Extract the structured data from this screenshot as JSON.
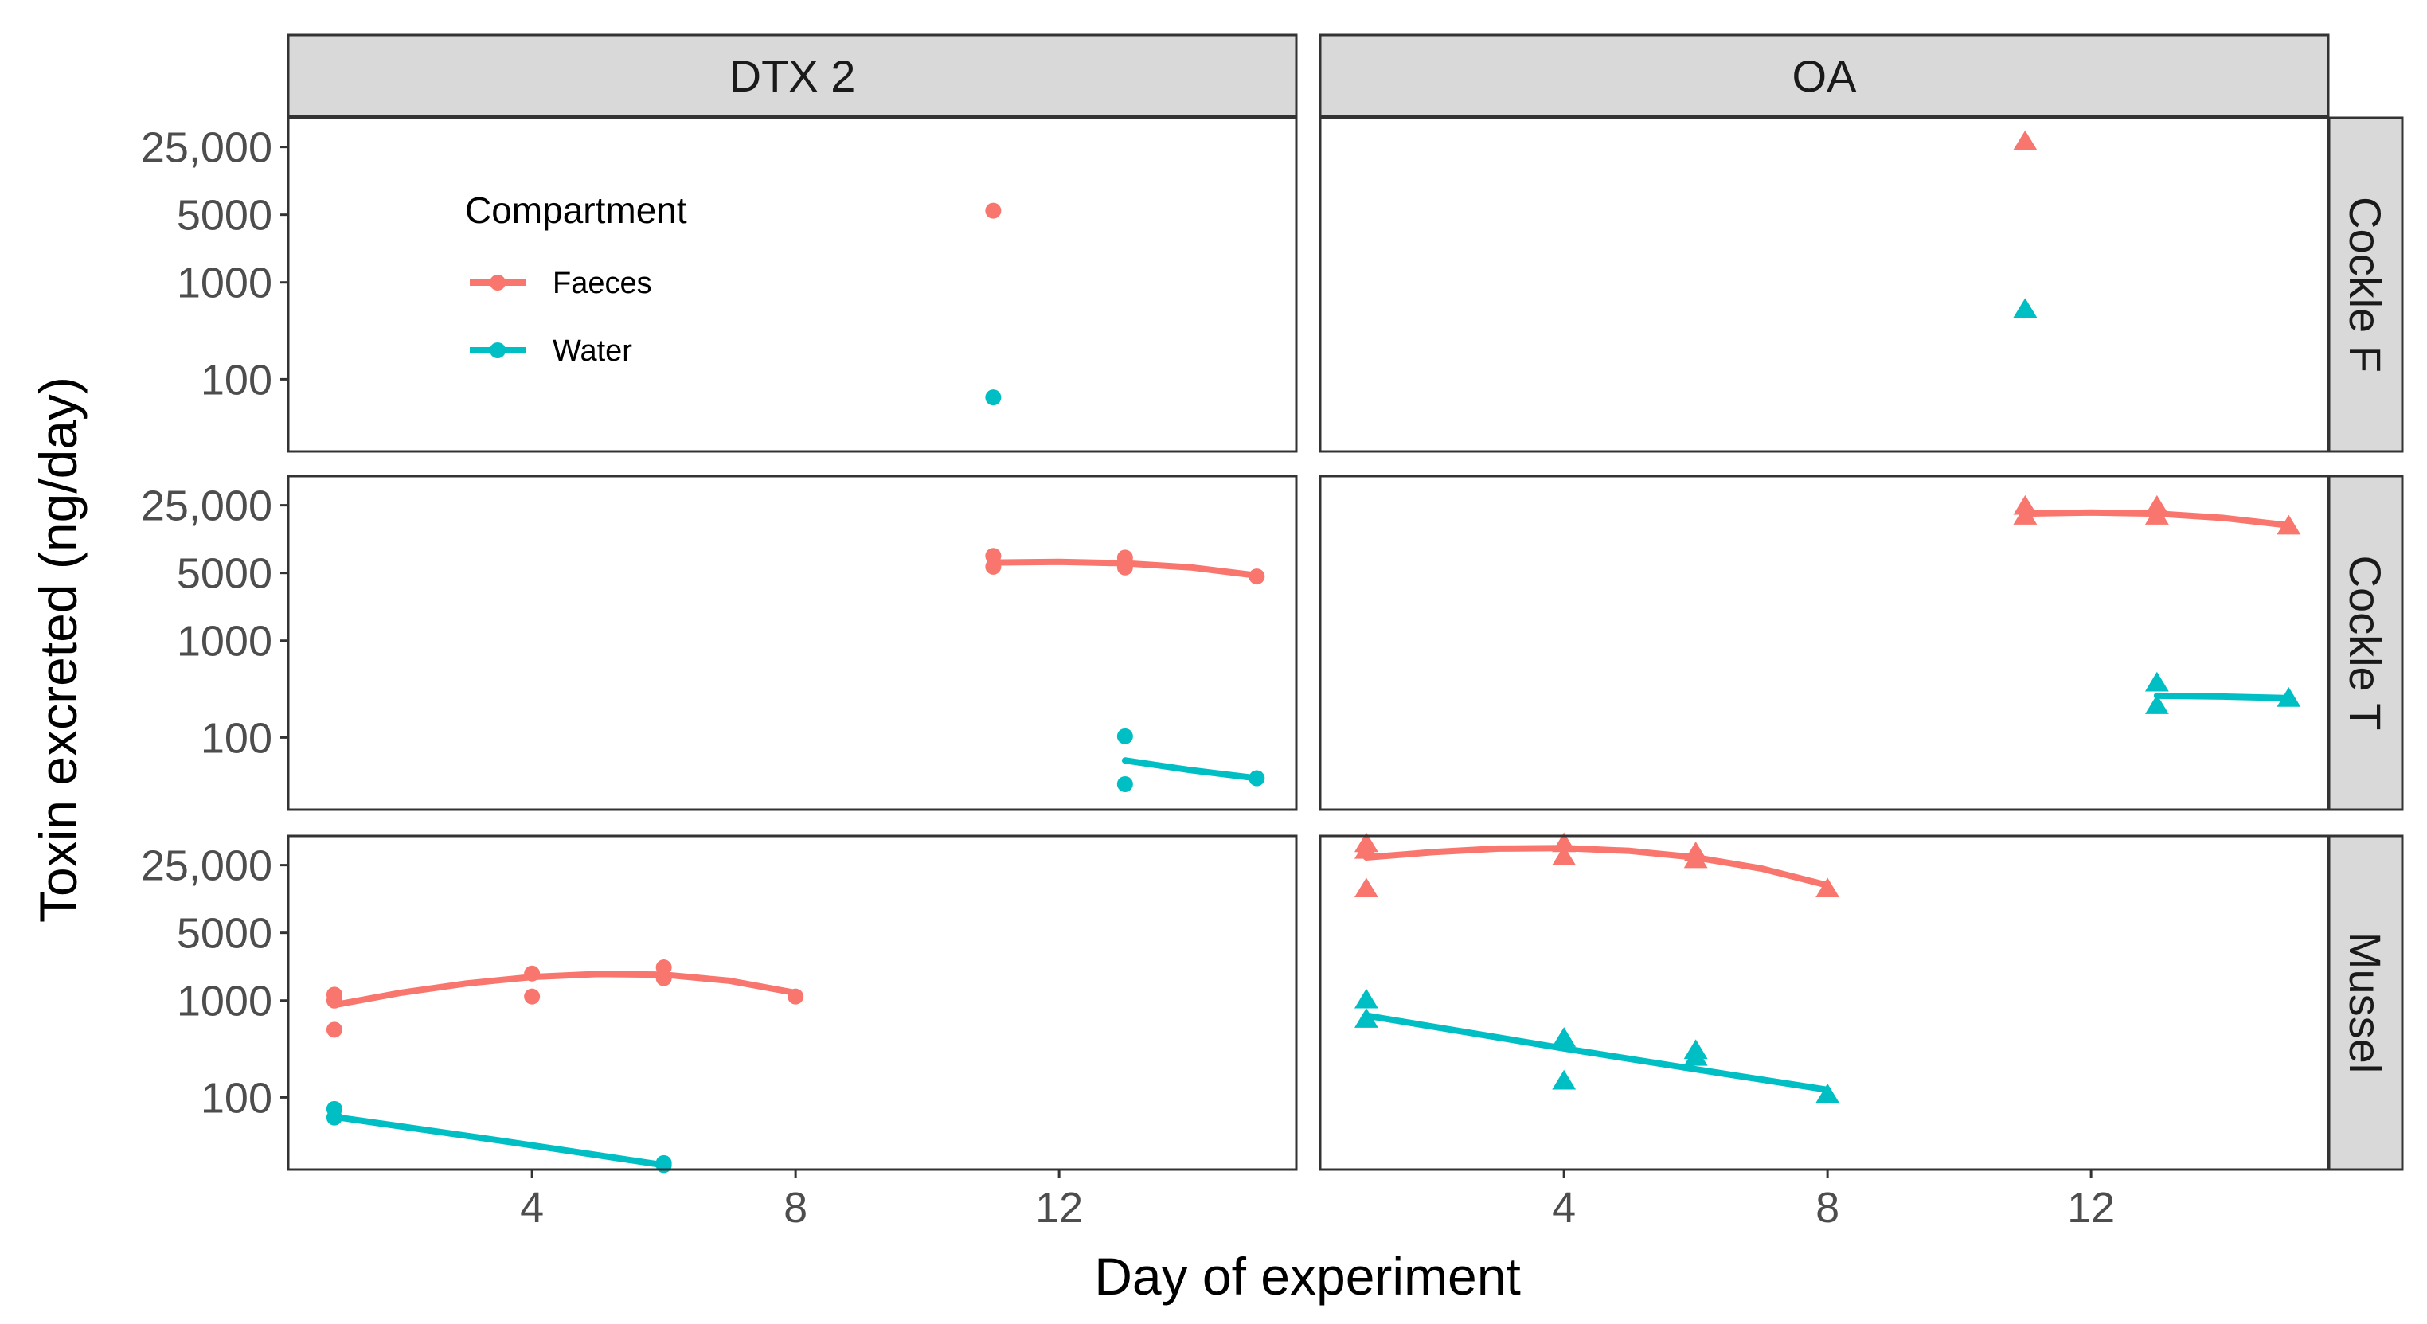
{
  "chart_data": {
    "type": "scatter",
    "facet_columns": [
      "DTX 2",
      "OA"
    ],
    "facet_rows": [
      "Cockle F",
      "Cockle T",
      "Mussel"
    ],
    "xlabel": "Day of experiment",
    "ylabel": "Toxin excreted (ng/day)",
    "x_ticks": [
      4,
      8,
      12
    ],
    "x_tick_labels": [
      "4",
      "8",
      "12"
    ],
    "xlim": [
      0.3,
      15.6
    ],
    "y_scale": "log10",
    "y_ticks": [
      100,
      1000,
      5000,
      25000
    ],
    "y_tick_labels": [
      "100",
      "1000",
      "5000",
      "25,000"
    ],
    "ylim": [
      18,
      50000
    ],
    "legend": {
      "title": "Compartment",
      "position": "inside-top-left",
      "entries": [
        {
          "name": "Faeces",
          "color": "#F8766D"
        },
        {
          "name": "Water",
          "color": "#00BFC4"
        }
      ]
    },
    "panels": [
      {
        "row": "Cockle F",
        "col": "DTX 2",
        "shape": "circle",
        "series": [
          {
            "name": "Faeces",
            "points": [
              [
                11,
                5500
              ]
            ],
            "fit": []
          },
          {
            "name": "Water",
            "points": [
              [
                11,
                65
              ]
            ],
            "fit": []
          }
        ]
      },
      {
        "row": "Cockle F",
        "col": "OA",
        "shape": "triangle",
        "series": [
          {
            "name": "Faeces",
            "points": [
              [
                11,
                28000
              ]
            ],
            "fit": []
          },
          {
            "name": "Water",
            "points": [
              [
                11,
                520
              ]
            ],
            "fit": []
          }
        ]
      },
      {
        "row": "Cockle T",
        "col": "DTX 2",
        "shape": "circle",
        "series": [
          {
            "name": "Faeces",
            "points": [
              [
                11,
                7500
              ],
              [
                11,
                5800
              ],
              [
                13,
                7200
              ],
              [
                13,
                5700
              ],
              [
                15,
                4600
              ]
            ],
            "fit": [
              [
                11,
                6400
              ],
              [
                12,
                6500
              ],
              [
                13,
                6300
              ],
              [
                14,
                5700
              ],
              [
                15,
                4700
              ]
            ]
          },
          {
            "name": "Water",
            "points": [
              [
                13,
                103
              ],
              [
                13,
                33
              ],
              [
                15,
                38
              ]
            ],
            "fit": [
              [
                13,
                58
              ],
              [
                14,
                46
              ],
              [
                15,
                38
              ]
            ]
          }
        ]
      },
      {
        "row": "Cockle T",
        "col": "OA",
        "shape": "triangle",
        "series": [
          {
            "name": "Faeces",
            "points": [
              [
                11,
                24000
              ],
              [
                11,
                19000
              ],
              [
                13,
                24000
              ],
              [
                13,
                19000
              ],
              [
                15,
                15000
              ]
            ],
            "fit": [
              [
                11,
                20500
              ],
              [
                12,
                21000
              ],
              [
                13,
                20500
              ],
              [
                14,
                18500
              ],
              [
                15,
                15500
              ]
            ]
          },
          {
            "name": "Water",
            "points": [
              [
                13,
                360
              ],
              [
                13,
                210
              ],
              [
                15,
                250
              ]
            ],
            "fit": [
              [
                13,
                270
              ],
              [
                14,
                265
              ],
              [
                15,
                255
              ]
            ]
          }
        ]
      },
      {
        "row": "Mussel",
        "col": "DTX 2",
        "shape": "circle",
        "series": [
          {
            "name": "Faeces",
            "points": [
              [
                1,
                1150
              ],
              [
                1,
                1000
              ],
              [
                1,
                500
              ],
              [
                4,
                1900
              ],
              [
                4,
                1100
              ],
              [
                6,
                2200
              ],
              [
                6,
                1700
              ],
              [
                8,
                1100
              ]
            ],
            "fit": [
              [
                1,
                900
              ],
              [
                2,
                1200
              ],
              [
                3,
                1500
              ],
              [
                4,
                1750
              ],
              [
                5,
                1880
              ],
              [
                6,
                1850
              ],
              [
                7,
                1600
              ],
              [
                8,
                1200
              ]
            ]
          },
          {
            "name": "Water",
            "points": [
              [
                1,
                76
              ],
              [
                1,
                62
              ],
              [
                6,
                20
              ],
              [
                6,
                21
              ]
            ],
            "fit": [
              [
                1,
                63
              ],
              [
                3.5,
                36
              ],
              [
                6,
                20
              ]
            ]
          }
        ]
      },
      {
        "row": "Mussel",
        "col": "OA",
        "shape": "triangle",
        "series": [
          {
            "name": "Faeces",
            "points": [
              [
                1,
                41000
              ],
              [
                1,
                35000
              ],
              [
                1,
                14000
              ],
              [
                4,
                41000
              ],
              [
                4,
                30000
              ],
              [
                6,
                33000
              ],
              [
                6,
                28000
              ],
              [
                8,
                14000
              ]
            ],
            "fit": [
              [
                1,
                30000
              ],
              [
                2,
                34000
              ],
              [
                3,
                37000
              ],
              [
                4,
                37500
              ],
              [
                5,
                35000
              ],
              [
                6,
                30000
              ],
              [
                7,
                23000
              ],
              [
                8,
                15500
              ]
            ]
          },
          {
            "name": "Water",
            "points": [
              [
                1,
                1000
              ],
              [
                1,
                630
              ],
              [
                4,
                400
              ],
              [
                4,
                145
              ],
              [
                6,
                300
              ],
              [
                6,
                255
              ],
              [
                8,
                105
              ]
            ],
            "fit": [
              [
                1,
                700
              ],
              [
                4,
                320
              ],
              [
                6,
                195
              ],
              [
                8,
                120
              ]
            ]
          }
        ]
      }
    ]
  }
}
